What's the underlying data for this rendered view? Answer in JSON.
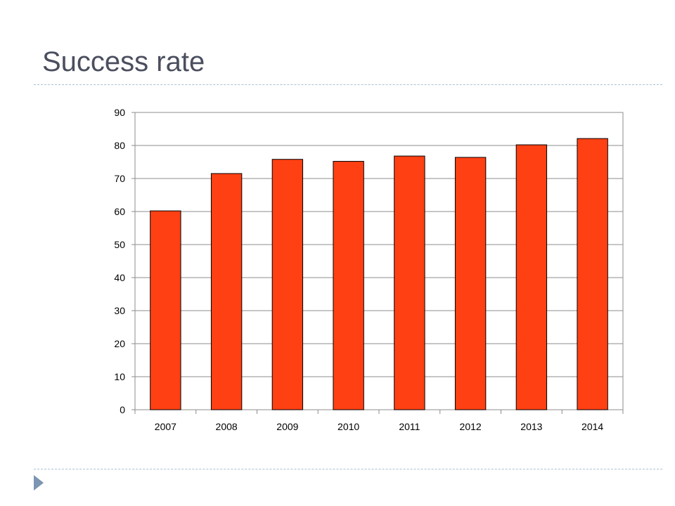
{
  "slide": {
    "title": "Success rate",
    "rule_color": "#a9c2d6",
    "marker_color": "#7b95b3",
    "marker_icon": "triangle-right-icon"
  },
  "chart_data": {
    "type": "bar",
    "categories": [
      "2007",
      "2008",
      "2009",
      "2010",
      "2011",
      "2012",
      "2013",
      "2014"
    ],
    "values": [
      60.2,
      71.5,
      75.8,
      75.2,
      76.8,
      76.4,
      80.2,
      82.1
    ],
    "ylim": [
      0,
      90
    ],
    "yticks": [
      "0",
      "10",
      "20",
      "30",
      "40",
      "50",
      "60",
      "70",
      "80",
      "90"
    ],
    "grid": true,
    "legend": "none",
    "bar_color": "#ff4013",
    "bar_edge_color": "#000000"
  }
}
